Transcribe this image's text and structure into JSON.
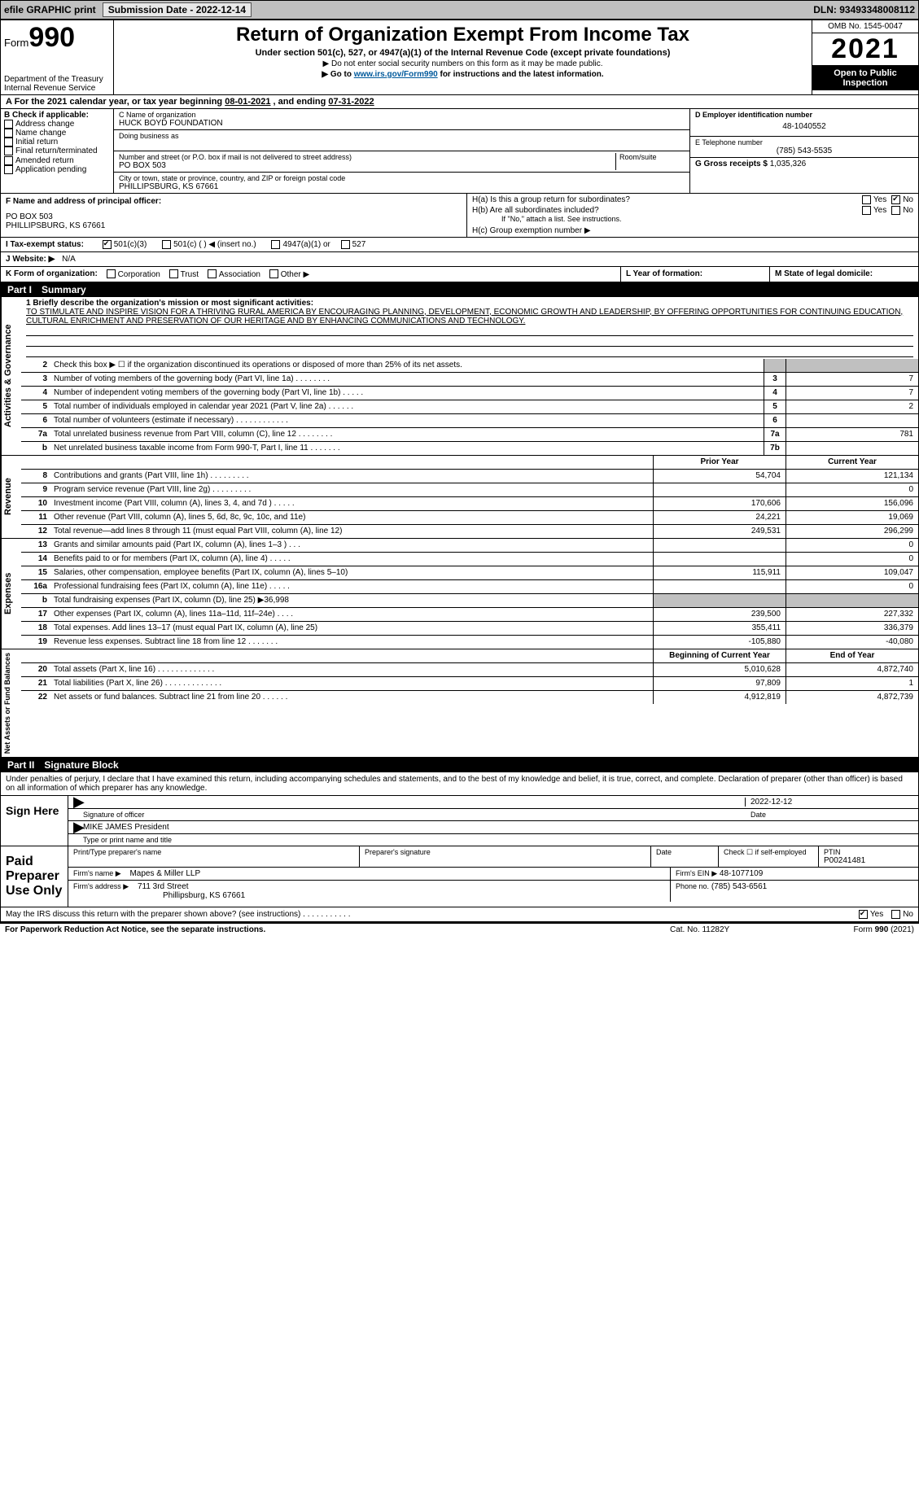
{
  "topbar": {
    "efile": "efile GRAPHIC print",
    "subdate_label": "Submission Date - ",
    "subdate": "2022-12-14",
    "dln_label": "DLN: ",
    "dln": "93493348008112"
  },
  "header": {
    "form_word": "Form",
    "form_num": "990",
    "dept1": "Department of the Treasury",
    "dept2": "Internal Revenue Service",
    "title": "Return of Organization Exempt From Income Tax",
    "sub": "Under section 501(c), 527, or 4947(a)(1) of the Internal Revenue Code (except private foundations)",
    "note1": "▶ Do not enter social security numbers on this form as it may be made public.",
    "note2_pre": "▶ Go to ",
    "note2_link": "www.irs.gov/Form990",
    "note2_post": " for instructions and the latest information.",
    "omb": "OMB No. 1545-0047",
    "year": "2021",
    "open": "Open to Public Inspection"
  },
  "rowA": {
    "text_pre": "A For the 2021 calendar year, or tax year beginning ",
    "begin": "08-01-2021",
    "mid": " , and ending ",
    "end": "07-31-2022"
  },
  "colB": {
    "title": "B Check if applicable:",
    "items": [
      "Address change",
      "Name change",
      "Initial return",
      "Final return/terminated",
      "Amended return",
      "Application pending"
    ]
  },
  "colC": {
    "name_label": "C Name of organization",
    "name": "HUCK BOYD FOUNDATION",
    "dba": "Doing business as",
    "street_label": "Number and street (or P.O. box if mail is not delivered to street address)",
    "room_label": "Room/suite",
    "street": "PO BOX 503",
    "city_label": "City or town, state or province, country, and ZIP or foreign postal code",
    "city": "PHILLIPSBURG, KS  67661"
  },
  "colD": {
    "ein_label": "D Employer identification number",
    "ein": "48-1040552",
    "phone_label": "E Telephone number",
    "phone": "(785) 543-5535",
    "gross_label": "G Gross receipts $ ",
    "gross": "1,035,326"
  },
  "officer": {
    "f_label": "F Name and address of principal officer:",
    "line1": "PO BOX 503",
    "line2": "PHILLIPSBURG, KS  67661",
    "ha": "H(a)  Is this a group return for subordinates?",
    "hb": "H(b)  Are all subordinates included?",
    "hb_note": "If \"No,\" attach a list. See instructions.",
    "hc": "H(c)  Group exemption number ▶",
    "yes": "Yes",
    "no": "No"
  },
  "tax": {
    "i_label": "I  Tax-exempt status:",
    "c3": "501(c)(3)",
    "c": "501(c) (   ) ◀ (insert no.)",
    "a1": "4947(a)(1) or",
    "527": "527",
    "j_label": "J  Website: ▶",
    "j_val": "N/A",
    "k_label": "K Form of organization:",
    "k_opts": [
      "Corporation",
      "Trust",
      "Association",
      "Other ▶"
    ],
    "l_label": "L Year of formation:",
    "m_label": "M State of legal domicile:"
  },
  "part1_label": "Part I",
  "part1_title": "Summary",
  "mission": {
    "q": "1   Briefly describe the organization's mission or most significant activities:",
    "text": "TO STIMULATE AND INSPIRE VISION FOR A THRIVING RURAL AMERICA BY ENCOURAGING PLANNING, DEVELOPMENT, ECONOMIC GROWTH AND LEADERSHIP, BY OFFERING OPPORTUNITIES FOR CONTINUING EDUCATION, CULTURAL ENRICHMENT AND PRESERVATION OF OUR HERITAGE AND BY ENHANCING COMMUNICATIONS AND TECHNOLOGY."
  },
  "activities": {
    "side": "Activities & Governance",
    "l2": "Check this box ▶ ☐  if the organization discontinued its operations or disposed of more than 25% of its net assets.",
    "rows": [
      {
        "n": "3",
        "t": "Number of voting members of the governing body (Part VI, line 1a)   .    .    .    .    .    .    .    .",
        "b": "3",
        "v": "7"
      },
      {
        "n": "4",
        "t": "Number of independent voting members of the governing body (Part VI, line 1b)   .    .    .    .    .",
        "b": "4",
        "v": "7"
      },
      {
        "n": "5",
        "t": "Total number of individuals employed in calendar year 2021 (Part V, line 2a)   .    .    .    .    .    .",
        "b": "5",
        "v": "2"
      },
      {
        "n": "6",
        "t": "Total number of volunteers (estimate if necessary)   .    .    .    .    .    .    .    .    .    .    .    .",
        "b": "6",
        "v": ""
      },
      {
        "n": "7a",
        "t": "Total unrelated business revenue from Part VIII, column (C), line 12   .    .    .    .    .    .    .    .",
        "b": "7a",
        "v": "781"
      },
      {
        "n": "b",
        "t": "Net unrelated business taxable income from Form 990-T, Part I, line 11   .    .    .    .    .    .    .",
        "b": "7b",
        "v": ""
      }
    ]
  },
  "revenue": {
    "side": "Revenue",
    "head_prior": "Prior Year",
    "head_cur": "Current Year",
    "rows": [
      {
        "n": "8",
        "t": "Contributions and grants (Part VIII, line 1h)   .    .    .    .    .    .    .    .    .",
        "p": "54,704",
        "c": "121,134"
      },
      {
        "n": "9",
        "t": "Program service revenue (Part VIII, line 2g)   .    .    .    .    .    .    .    .    .",
        "p": "",
        "c": "0"
      },
      {
        "n": "10",
        "t": "Investment income (Part VIII, column (A), lines 3, 4, and 7d )   .    .    .    .    .",
        "p": "170,606",
        "c": "156,096"
      },
      {
        "n": "11",
        "t": "Other revenue (Part VIII, column (A), lines 5, 6d, 8c, 9c, 10c, and 11e)",
        "p": "24,221",
        "c": "19,069"
      },
      {
        "n": "12",
        "t": "Total revenue—add lines 8 through 11 (must equal Part VIII, column (A), line 12)",
        "p": "249,531",
        "c": "296,299"
      }
    ]
  },
  "expenses": {
    "side": "Expenses",
    "rows": [
      {
        "n": "13",
        "t": "Grants and similar amounts paid (Part IX, column (A), lines 1–3 )   .    .    .",
        "p": "",
        "c": "0"
      },
      {
        "n": "14",
        "t": "Benefits paid to or for members (Part IX, column (A), line 4)   .    .    .    .    .",
        "p": "",
        "c": "0"
      },
      {
        "n": "15",
        "t": "Salaries, other compensation, employee benefits (Part IX, column (A), lines 5–10)",
        "p": "115,911",
        "c": "109,047"
      },
      {
        "n": "16a",
        "t": "Professional fundraising fees (Part IX, column (A), line 11e)   .    .    .    .    .",
        "p": "",
        "c": "0"
      },
      {
        "n": "b",
        "t": "Total fundraising expenses (Part IX, column (D), line 25) ▶36,998",
        "p": "SHADE",
        "c": "SHADE"
      },
      {
        "n": "17",
        "t": "Other expenses (Part IX, column (A), lines 11a–11d, 11f–24e)   .    .    .    .",
        "p": "239,500",
        "c": "227,332"
      },
      {
        "n": "18",
        "t": "Total expenses. Add lines 13–17 (must equal Part IX, column (A), line 25)",
        "p": "355,411",
        "c": "336,379"
      },
      {
        "n": "19",
        "t": "Revenue less expenses. Subtract line 18 from line 12   .    .    .    .    .    .    .",
        "p": "-105,880",
        "c": "-40,080"
      }
    ]
  },
  "netassets": {
    "side": "Net Assets or Fund Balances",
    "head_beg": "Beginning of Current Year",
    "head_end": "End of Year",
    "rows": [
      {
        "n": "20",
        "t": "Total assets (Part X, line 16)   .    .    .    .    .    .    .    .    .    .    .    .    .",
        "p": "5,010,628",
        "c": "4,872,740"
      },
      {
        "n": "21",
        "t": "Total liabilities (Part X, line 26)   .    .    .    .    .    .    .    .    .    .    .    .    .",
        "p": "97,809",
        "c": "1"
      },
      {
        "n": "22",
        "t": "Net assets or fund balances. Subtract line 21 from line 20   .    .    .    .    .    .",
        "p": "4,912,819",
        "c": "4,872,739"
      }
    ]
  },
  "part2_label": "Part II",
  "part2_title": "Signature Block",
  "sig": {
    "decl": "Under penalties of perjury, I declare that I have examined this return, including accompanying schedules and statements, and to the best of my knowledge and belief, it is true, correct, and complete. Declaration of preparer (other than officer) is based on all information of which preparer has any knowledge.",
    "sign_here": "Sign Here",
    "sig_off": "Signature of officer",
    "date_lbl": "Date",
    "date": "2022-12-12",
    "name": "MIKE JAMES President",
    "name_lbl": "Type or print name and title"
  },
  "paid": {
    "label": "Paid Preparer Use Only",
    "h1": "Print/Type preparer's name",
    "h2": "Preparer's signature",
    "h3": "Date",
    "h4": "Check ☐ if self-employed",
    "h5": "PTIN",
    "ptin": "P00241481",
    "firm_lbl": "Firm's name   ▶",
    "firm": "Mapes & Miller LLP",
    "ein_lbl": "Firm's EIN ▶",
    "ein": "48-1077109",
    "addr_lbl": "Firm's address ▶",
    "addr1": "711 3rd Street",
    "addr2": "Phillipsburg, KS  67661",
    "phone_lbl": "Phone no.",
    "phone": "(785) 543-6561"
  },
  "footer": {
    "q": "May the IRS discuss this return with the preparer shown above? (see instructions)   .    .    .    .    .    .    .    .    .    .    .",
    "yes": "Yes",
    "no": "No",
    "pra": "For Paperwork Reduction Act Notice, see the separate instructions.",
    "cat": "Cat. No. 11282Y",
    "form": "Form 990 (2021)"
  }
}
